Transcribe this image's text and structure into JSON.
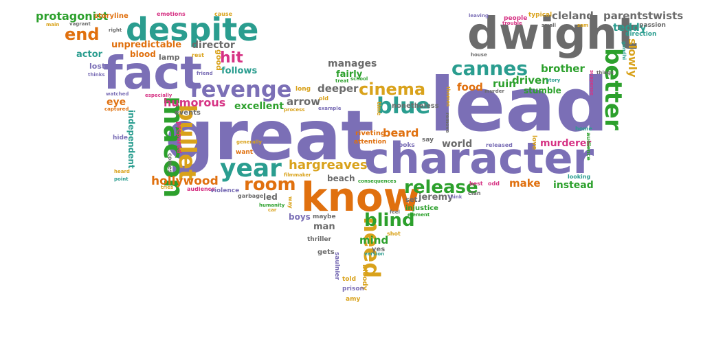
{
  "palette": {
    "purple": "#7b6fb6",
    "green": "#2ca02c",
    "teal": "#2a9d8f",
    "orange": "#e0700e",
    "gold": "#d9a21b",
    "magenta": "#d63384",
    "gray": "#6b6b6b",
    "olive": "#8a7f2a"
  },
  "words": [
    {
      "text": "great",
      "color": "purple"
    },
    {
      "text": "lead",
      "color": "purple"
    },
    {
      "text": "character",
      "color": "purple"
    },
    {
      "text": "dwight",
      "color": "gray"
    },
    {
      "text": "fact",
      "color": "purple"
    },
    {
      "text": "know",
      "color": "orange"
    },
    {
      "text": "despite",
      "color": "teal"
    },
    {
      "text": "macon",
      "color": "green"
    },
    {
      "text": "bullet",
      "color": "gold"
    },
    {
      "text": "year",
      "color": "teal"
    },
    {
      "text": "revenge",
      "color": "purple"
    },
    {
      "text": "cannes",
      "color": "teal"
    },
    {
      "text": "blue",
      "color": "teal"
    },
    {
      "text": "better",
      "color": "green"
    },
    {
      "text": "cinema",
      "color": "gold"
    },
    {
      "text": "need",
      "color": "gold"
    },
    {
      "text": "release",
      "color": "green"
    },
    {
      "text": "room",
      "color": "orange"
    },
    {
      "text": "end",
      "color": "orange"
    },
    {
      "text": "blind",
      "color": "green"
    },
    {
      "text": "hit",
      "color": "magenta"
    },
    {
      "text": "hargreaves",
      "color": "gold"
    },
    {
      "text": "humorous",
      "color": "magenta"
    },
    {
      "text": "hollywood",
      "color": "orange"
    },
    {
      "text": "arrow",
      "color": "gray"
    },
    {
      "text": "deeper",
      "color": "gray"
    },
    {
      "text": "food",
      "color": "orange"
    },
    {
      "text": "ruin",
      "color": "green"
    },
    {
      "text": "driven",
      "color": "green"
    },
    {
      "text": "slowly",
      "color": "gold"
    },
    {
      "text": "brother",
      "color": "green"
    },
    {
      "text": "protagonist",
      "color": "green"
    },
    {
      "text": "director",
      "color": "gray"
    },
    {
      "text": "manages",
      "color": "gray"
    },
    {
      "text": "excellent",
      "color": "green"
    },
    {
      "text": "beard",
      "color": "orange"
    },
    {
      "text": "make",
      "color": "orange"
    },
    {
      "text": "instead",
      "color": "green"
    },
    {
      "text": "murderer",
      "color": "magenta"
    },
    {
      "text": "mind",
      "color": "green"
    },
    {
      "text": "jeremy",
      "color": "gray"
    },
    {
      "text": "cleland",
      "color": "gray"
    },
    {
      "text": "parents",
      "color": "gray"
    },
    {
      "text": "twists",
      "color": "gray"
    },
    {
      "text": "teddy",
      "color": "teal"
    },
    {
      "text": "unpredictable",
      "color": "orange"
    },
    {
      "text": "follows",
      "color": "teal"
    },
    {
      "text": "blood",
      "color": "orange"
    },
    {
      "text": "actor",
      "color": "teal"
    },
    {
      "text": "eye",
      "color": "orange"
    },
    {
      "text": "world",
      "color": "gray"
    },
    {
      "text": "fairly",
      "color": "green"
    },
    {
      "text": "stumble",
      "color": "green"
    },
    {
      "text": "independent",
      "color": "teal"
    },
    {
      "text": "beach",
      "color": "gray"
    },
    {
      "text": "boys",
      "color": "purple"
    },
    {
      "text": "man",
      "color": "gray"
    },
    {
      "text": "led",
      "color": "gray"
    },
    {
      "text": "storyline",
      "color": "orange"
    },
    {
      "text": "lost",
      "color": "purple"
    },
    {
      "text": "lamp",
      "color": "gray"
    },
    {
      "text": "good",
      "color": "gold"
    },
    {
      "text": "passion",
      "color": "gray"
    },
    {
      "text": "direction",
      "color": "teal"
    },
    {
      "text": "people",
      "color": "magenta"
    },
    {
      "text": "typical",
      "color": "gold"
    },
    {
      "text": "emotions",
      "color": "magenta"
    },
    {
      "text": "cause",
      "color": "gold"
    },
    {
      "text": "main",
      "color": "gold"
    },
    {
      "text": "vagrant",
      "color": "gray"
    },
    {
      "text": "right",
      "color": "gray"
    },
    {
      "text": "rest",
      "color": "gold"
    },
    {
      "text": "friend",
      "color": "purple"
    },
    {
      "text": "thinks",
      "color": "purple"
    },
    {
      "text": "watched",
      "color": "purple"
    },
    {
      "text": "especially",
      "color": "magenta"
    },
    {
      "text": "captured",
      "color": "orange"
    },
    {
      "text": "events",
      "color": "gray"
    },
    {
      "text": "prepared",
      "color": "magenta"
    },
    {
      "text": "comes",
      "color": "gray"
    },
    {
      "text": "want",
      "color": "orange"
    },
    {
      "text": "generally",
      "color": "gold"
    },
    {
      "text": "audience",
      "color": "magenta"
    },
    {
      "text": "tries",
      "color": "gold"
    },
    {
      "text": "violence",
      "color": "purple"
    },
    {
      "text": "garbage",
      "color": "gray"
    },
    {
      "text": "humanity",
      "color": "green"
    },
    {
      "text": "car",
      "color": "gold"
    },
    {
      "text": "way",
      "color": "gold"
    },
    {
      "text": "filmmaker",
      "color": "gold"
    },
    {
      "text": "long",
      "color": "gold"
    },
    {
      "text": "old",
      "color": "gold"
    },
    {
      "text": "process",
      "color": "gold"
    },
    {
      "text": "example",
      "color": "purple"
    },
    {
      "text": "nonetheless",
      "color": "gray"
    },
    {
      "text": "time",
      "color": "gold"
    },
    {
      "text": "riveting",
      "color": "orange"
    },
    {
      "text": "attention",
      "color": "orange"
    },
    {
      "text": "looks",
      "color": "purple"
    },
    {
      "text": "say",
      "color": "gray"
    },
    {
      "text": "consequences",
      "color": "green"
    },
    {
      "text": "set",
      "color": "gray"
    },
    {
      "text": "injustice",
      "color": "green"
    },
    {
      "text": "element",
      "color": "green"
    },
    {
      "text": "feel",
      "color": "gray"
    },
    {
      "text": "maybe",
      "color": "gray"
    },
    {
      "text": "thriller",
      "color": "gray"
    },
    {
      "text": "gets",
      "color": "gray"
    },
    {
      "text": "saulnier",
      "color": "purple"
    },
    {
      "text": "told",
      "color": "gold"
    },
    {
      "text": "bloody",
      "color": "gold"
    },
    {
      "text": "prison",
      "color": "purple"
    },
    {
      "text": "amy",
      "color": "gold"
    },
    {
      "text": "shot",
      "color": "gold"
    },
    {
      "text": "yes",
      "color": "gray"
    },
    {
      "text": "version",
      "color": "teal"
    },
    {
      "text": "treat",
      "color": "green"
    },
    {
      "text": "school",
      "color": "green"
    },
    {
      "text": "remove",
      "color": "gray"
    },
    {
      "text": "themes",
      "color": "gold"
    },
    {
      "text": "leaving",
      "color": "purple"
    },
    {
      "text": "trouble",
      "color": "magenta"
    },
    {
      "text": "small",
      "color": "gray"
    },
    {
      "text": "sam",
      "color": "gold"
    },
    {
      "text": "house",
      "color": "gray"
    },
    {
      "text": "murder",
      "color": "gray"
    },
    {
      "text": "released",
      "color": "purple"
    },
    {
      "text": "love",
      "color": "gold"
    },
    {
      "text": "home",
      "color": "teal"
    },
    {
      "text": "audience",
      "color": "green"
    },
    {
      "text": "looking",
      "color": "teal"
    },
    {
      "text": "story",
      "color": "teal"
    },
    {
      "text": "things",
      "color": "gray"
    },
    {
      "text": "suspense",
      "color": "magenta"
    },
    {
      "text": "gandhi",
      "color": "teal"
    },
    {
      "text": "best",
      "color": "magenta"
    },
    {
      "text": "odd",
      "color": "magenta"
    },
    {
      "text": "clan",
      "color": "gray"
    },
    {
      "text": "think",
      "color": "purple"
    },
    {
      "text": "hide",
      "color": "purple"
    },
    {
      "text": "point",
      "color": "teal"
    },
    {
      "text": "heard",
      "color": "gold"
    }
  ]
}
